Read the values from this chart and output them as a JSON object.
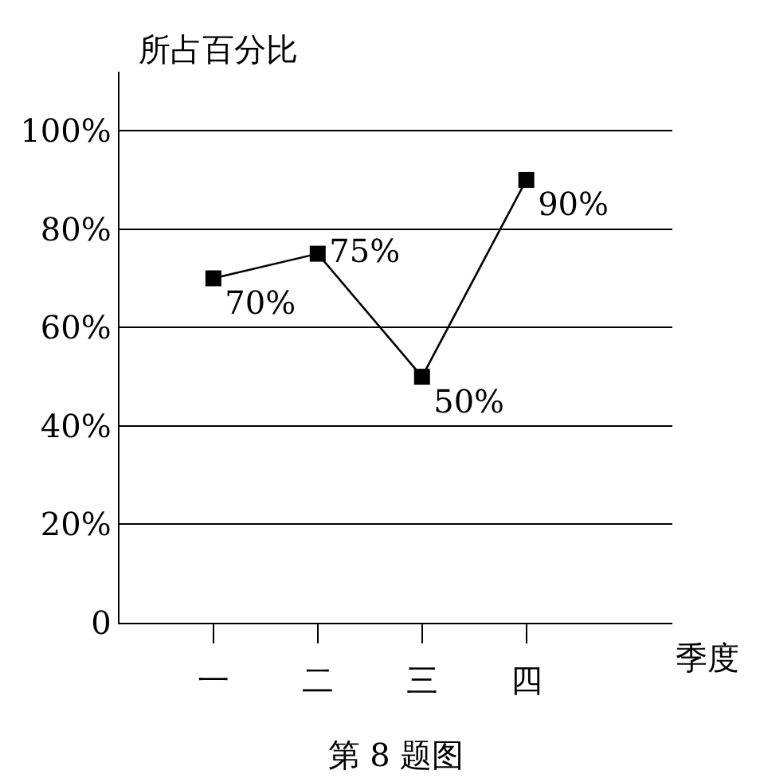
{
  "chart_data": {
    "type": "line",
    "title": "第 8 题图",
    "xlabel": "季度",
    "ylabel": "所占百分比",
    "categories": [
      "一",
      "二",
      "三",
      "四"
    ],
    "series": [
      {
        "color": "#000000",
        "values": [
          70,
          75,
          50,
          90
        ],
        "value_labels": [
          "70%",
          "75%",
          "50%",
          "90%"
        ]
      }
    ],
    "ylim": [
      0,
      112
    ],
    "yticks": [
      0,
      {
        "value": 20,
        "label": "20%"
      },
      {
        "value": 40,
        "label": "40%"
      },
      {
        "value": 60,
        "label": "60%"
      },
      {
        "value": 80,
        "label": "80%"
      },
      {
        "value": 100,
        "label": "100%"
      }
    ],
    "grid": "y",
    "legend": false,
    "marker": "square",
    "line_style": "solid"
  }
}
